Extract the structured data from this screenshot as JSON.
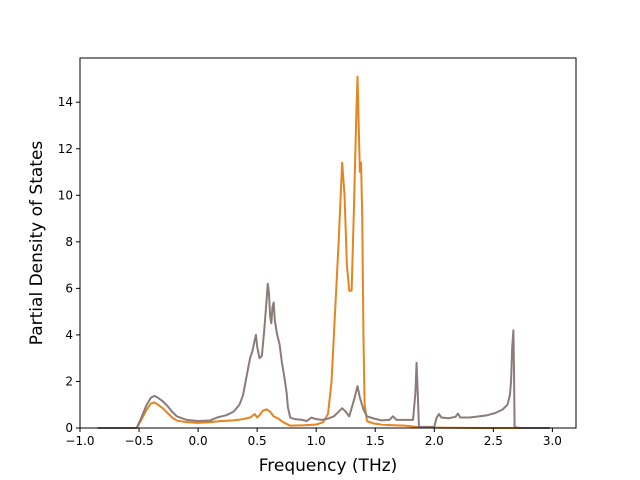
{
  "chart_data": {
    "type": "line",
    "xlabel": "Frequency (THz)",
    "ylabel": "Partial Density of States",
    "xlim": [
      -1.0,
      3.2
    ],
    "ylim": [
      0,
      15.9
    ],
    "xticks": [
      -1.0,
      -0.5,
      0.0,
      0.5,
      1.0,
      1.5,
      2.0,
      2.5,
      3.0
    ],
    "xtick_labels": [
      "−1.0",
      "−0.5",
      "0.0",
      "0.5",
      "1.0",
      "1.5",
      "2.0",
      "2.5",
      "3.0"
    ],
    "yticks": [
      0,
      2,
      4,
      6,
      8,
      10,
      12,
      14
    ],
    "ytick_labels": [
      "0",
      "2",
      "4",
      "6",
      "8",
      "10",
      "12",
      "14"
    ],
    "grid": false,
    "series": [
      {
        "color": "#e6841f",
        "points": [
          [
            -0.85,
            0
          ],
          [
            -0.52,
            0
          ],
          [
            -0.48,
            0.35
          ],
          [
            -0.44,
            0.75
          ],
          [
            -0.4,
            1.05
          ],
          [
            -0.37,
            1.1
          ],
          [
            -0.34,
            1.0
          ],
          [
            -0.3,
            0.85
          ],
          [
            -0.26,
            0.65
          ],
          [
            -0.22,
            0.45
          ],
          [
            -0.18,
            0.32
          ],
          [
            -0.1,
            0.25
          ],
          [
            0.0,
            0.22
          ],
          [
            0.1,
            0.25
          ],
          [
            0.2,
            0.3
          ],
          [
            0.3,
            0.33
          ],
          [
            0.38,
            0.38
          ],
          [
            0.44,
            0.45
          ],
          [
            0.48,
            0.6
          ],
          [
            0.5,
            0.45
          ],
          [
            0.52,
            0.55
          ],
          [
            0.55,
            0.75
          ],
          [
            0.58,
            0.8
          ],
          [
            0.61,
            0.7
          ],
          [
            0.64,
            0.5
          ],
          [
            0.68,
            0.4
          ],
          [
            0.72,
            0.25
          ],
          [
            0.78,
            0.1
          ],
          [
            0.9,
            0.12
          ],
          [
            1.0,
            0.15
          ],
          [
            1.06,
            0.25
          ],
          [
            1.1,
            0.6
          ],
          [
            1.13,
            2.0
          ],
          [
            1.16,
            5.0
          ],
          [
            1.19,
            8.0
          ],
          [
            1.22,
            11.4
          ],
          [
            1.24,
            10.0
          ],
          [
            1.26,
            7.0
          ],
          [
            1.28,
            5.9
          ],
          [
            1.3,
            5.9
          ],
          [
            1.32,
            9.5
          ],
          [
            1.34,
            13.5
          ],
          [
            1.35,
            15.1
          ],
          [
            1.36,
            13.0
          ],
          [
            1.37,
            11.0
          ],
          [
            1.38,
            11.4
          ],
          [
            1.39,
            9.0
          ],
          [
            1.4,
            4.0
          ],
          [
            1.41,
            1.0
          ],
          [
            1.43,
            0.3
          ],
          [
            1.48,
            0.2
          ],
          [
            1.55,
            0.15
          ],
          [
            1.65,
            0.12
          ],
          [
            1.75,
            0.1
          ],
          [
            1.85,
            0.05
          ],
          [
            1.95,
            0.02
          ],
          [
            2.1,
            0.01
          ],
          [
            2.4,
            0.0
          ],
          [
            2.7,
            0.0
          ],
          [
            2.98,
            0
          ]
        ]
      },
      {
        "color": "#8c7b79",
        "points": [
          [
            -0.85,
            0
          ],
          [
            -0.52,
            0
          ],
          [
            -0.48,
            0.45
          ],
          [
            -0.44,
            0.95
          ],
          [
            -0.4,
            1.3
          ],
          [
            -0.37,
            1.38
          ],
          [
            -0.34,
            1.3
          ],
          [
            -0.3,
            1.15
          ],
          [
            -0.26,
            0.95
          ],
          [
            -0.22,
            0.7
          ],
          [
            -0.18,
            0.5
          ],
          [
            -0.1,
            0.35
          ],
          [
            0.0,
            0.3
          ],
          [
            0.1,
            0.32
          ],
          [
            0.16,
            0.45
          ],
          [
            0.24,
            0.55
          ],
          [
            0.3,
            0.7
          ],
          [
            0.35,
            1.0
          ],
          [
            0.38,
            1.4
          ],
          [
            0.41,
            2.2
          ],
          [
            0.44,
            3.0
          ],
          [
            0.46,
            3.3
          ],
          [
            0.48,
            3.8
          ],
          [
            0.49,
            4.0
          ],
          [
            0.5,
            3.5
          ],
          [
            0.52,
            3.0
          ],
          [
            0.54,
            3.1
          ],
          [
            0.56,
            4.2
          ],
          [
            0.58,
            5.5
          ],
          [
            0.59,
            6.2
          ],
          [
            0.6,
            5.8
          ],
          [
            0.61,
            4.8
          ],
          [
            0.62,
            4.5
          ],
          [
            0.63,
            5.2
          ],
          [
            0.64,
            5.4
          ],
          [
            0.65,
            4.6
          ],
          [
            0.67,
            4.0
          ],
          [
            0.69,
            3.6
          ],
          [
            0.71,
            2.8
          ],
          [
            0.73,
            2.2
          ],
          [
            0.75,
            1.5
          ],
          [
            0.76,
            0.9
          ],
          [
            0.78,
            0.45
          ],
          [
            0.82,
            0.38
          ],
          [
            0.88,
            0.35
          ],
          [
            0.92,
            0.3
          ],
          [
            0.96,
            0.45
          ],
          [
            1.0,
            0.38
          ],
          [
            1.05,
            0.35
          ],
          [
            1.1,
            0.4
          ],
          [
            1.15,
            0.5
          ],
          [
            1.19,
            0.7
          ],
          [
            1.22,
            0.85
          ],
          [
            1.25,
            0.7
          ],
          [
            1.28,
            0.5
          ],
          [
            1.32,
            1.2
          ],
          [
            1.35,
            1.8
          ],
          [
            1.37,
            1.3
          ],
          [
            1.4,
            0.8
          ],
          [
            1.43,
            0.5
          ],
          [
            1.48,
            0.42
          ],
          [
            1.55,
            0.33
          ],
          [
            1.62,
            0.35
          ],
          [
            1.65,
            0.5
          ],
          [
            1.68,
            0.35
          ],
          [
            1.75,
            0.35
          ],
          [
            1.82,
            0.35
          ],
          [
            1.84,
            1.5
          ],
          [
            1.85,
            2.8
          ],
          [
            1.86,
            1.5
          ],
          [
            1.87,
            0.05
          ],
          [
            2.0,
            0.05
          ],
          [
            2.02,
            0.45
          ],
          [
            2.04,
            0.6
          ],
          [
            2.06,
            0.45
          ],
          [
            2.12,
            0.42
          ],
          [
            2.18,
            0.48
          ],
          [
            2.2,
            0.62
          ],
          [
            2.22,
            0.45
          ],
          [
            2.3,
            0.45
          ],
          [
            2.38,
            0.5
          ],
          [
            2.45,
            0.55
          ],
          [
            2.52,
            0.65
          ],
          [
            2.58,
            0.8
          ],
          [
            2.62,
            1.0
          ],
          [
            2.64,
            1.4
          ],
          [
            2.65,
            2.0
          ],
          [
            2.66,
            3.5
          ],
          [
            2.67,
            4.2
          ],
          [
            2.675,
            2.5
          ],
          [
            2.68,
            0.05
          ],
          [
            2.72,
            0.0
          ],
          [
            2.98,
            0
          ]
        ]
      }
    ]
  }
}
